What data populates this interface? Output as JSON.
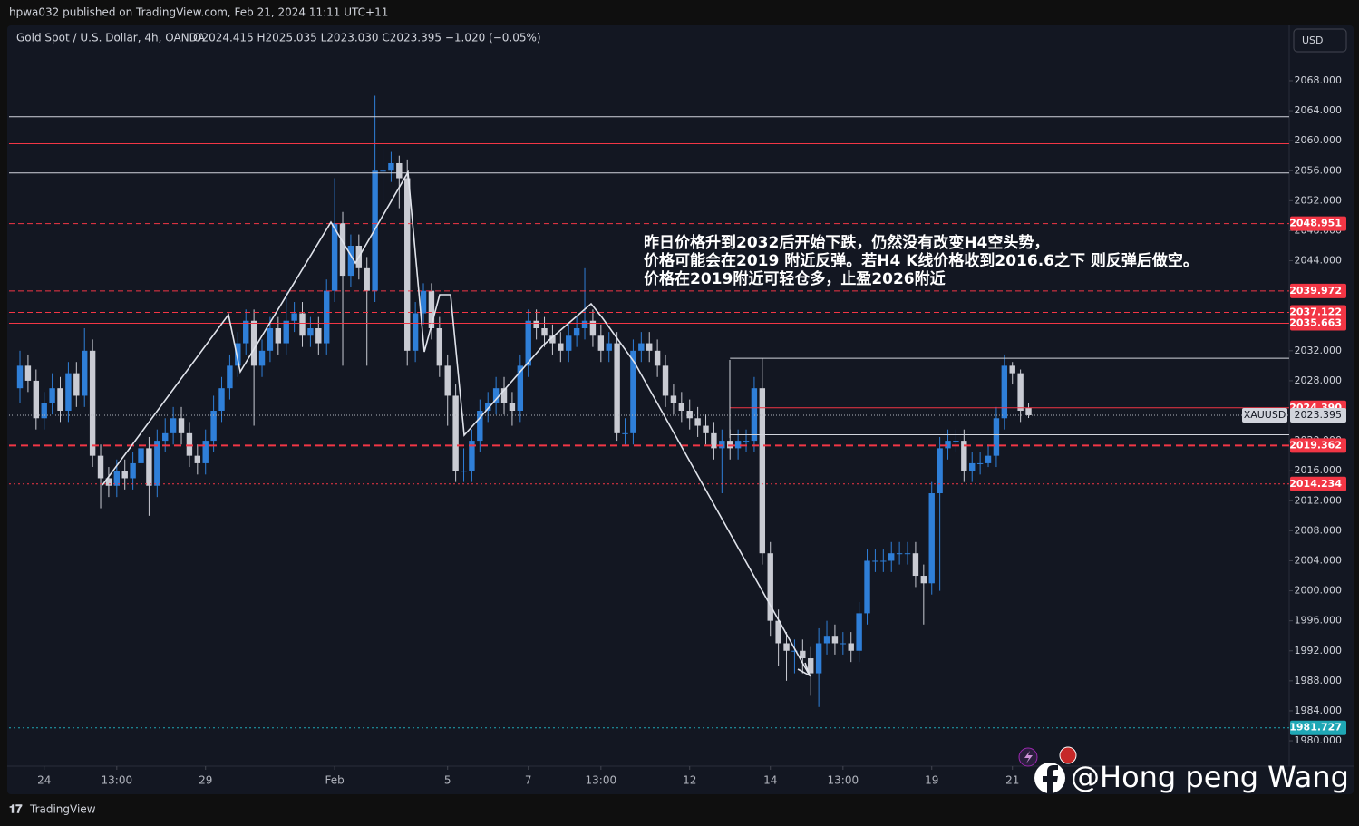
{
  "page": {
    "publisher": "hpwa032 published on TradingView.com, Feb 21, 2024 11:11 UTC+11",
    "currency_button": "USD",
    "watermark": "@Hong peng Wang",
    "footer": "TradingView"
  },
  "chart_data": {
    "type": "candlestick",
    "title": "Gold Spot / U.S. Dollar, 4h, OANDA",
    "ohlc_legend": "O2024.415  H2025.035  L2023.030  C2023.395  −1.020 (−0.05%)",
    "annotation": [
      "昨日价格升到2032后开始下跌，仍然没有改变H4空头势，",
      "价格可能会在2019 附近反弹。若H4 K线价格收到2016.6之下 则反弹后做空。",
      "价格在2019附近可轻仓多，止盈2026附近"
    ],
    "symbol": "XAUUSD",
    "last_price": 2023.395,
    "up_color": "#2f7fd8",
    "down_color": "#c9cbd3",
    "grid": false,
    "xlim": [
      -1.35,
      157.3
    ],
    "ylim": [
      1976.62,
      2075.37
    ],
    "xticks": [
      {
        "value": 3,
        "label": "24"
      },
      {
        "value": 12,
        "label": "13:00"
      },
      {
        "value": 23,
        "label": "29"
      },
      {
        "value": 39,
        "label": "Feb"
      },
      {
        "value": 53,
        "label": "5"
      },
      {
        "value": 63,
        "label": "7"
      },
      {
        "value": 72,
        "label": "13:00"
      },
      {
        "value": 83,
        "label": "12"
      },
      {
        "value": 93,
        "label": "14"
      },
      {
        "value": 102,
        "label": "13:00"
      },
      {
        "value": 113,
        "label": "19"
      },
      {
        "value": 123,
        "label": "21"
      }
    ],
    "yticks": [
      {
        "value": 2068,
        "label": "2068.000"
      },
      {
        "value": 2064,
        "label": "2064.000"
      },
      {
        "value": 2060,
        "label": "2060.000"
      },
      {
        "value": 2056,
        "label": "2056.000"
      },
      {
        "value": 2052,
        "label": "2052.000"
      },
      {
        "value": 2048,
        "label": "2048.000"
      },
      {
        "value": 2044,
        "label": "2044.000"
      },
      {
        "value": 2032,
        "label": "2032.000"
      },
      {
        "value": 2028,
        "label": "2028.000"
      },
      {
        "value": 2020,
        "label": "2020.000"
      },
      {
        "value": 2016,
        "label": "2016.000"
      },
      {
        "value": 2012,
        "label": "2012.000"
      },
      {
        "value": 2008,
        "label": "2008.000"
      },
      {
        "value": 2004,
        "label": "2004.000"
      },
      {
        "value": 2000,
        "label": "2000.000"
      },
      {
        "value": 1996,
        "label": "1996.000"
      },
      {
        "value": 1992,
        "label": "1992.000"
      },
      {
        "value": 1988,
        "label": "1988.000"
      },
      {
        "value": 1984,
        "label": "1984.000"
      },
      {
        "value": 1980,
        "label": "1980.000"
      }
    ],
    "levels": [
      {
        "value": 2063.2,
        "color": "#d1d4dc",
        "style": "solid"
      },
      {
        "value": 2059.6,
        "color": "#f23645",
        "style": "solid"
      },
      {
        "value": 2055.7,
        "color": "#d1d4dc",
        "style": "solid"
      },
      {
        "value": 2048.951,
        "label": "2048.951",
        "color": "#f23645",
        "style": "dashed"
      },
      {
        "value": 2039.972,
        "label": "2039.972",
        "color": "#f23645",
        "style": "dashed"
      },
      {
        "value": 2037.122,
        "label": "2037.122",
        "color": "#f23645",
        "style": "dashed"
      },
      {
        "value": 2035.663,
        "label": "2035.663",
        "color": "#f23645",
        "style": "solid"
      },
      {
        "value": 2031.0,
        "color": "#d1d4dc",
        "style": "solid",
        "start": 88
      },
      {
        "value": 2024.39,
        "label": "2024.390",
        "color": "#f23645",
        "style": "solid",
        "start": 88
      },
      {
        "value": 2020.8,
        "color": "#d1d4dc",
        "style": "solid",
        "start": 88
      },
      {
        "value": 2019.362,
        "label": "2019.362",
        "color": "#f23645",
        "style": "bold-dashed"
      },
      {
        "value": 2014.234,
        "label": "2014.234",
        "color": "#f23645",
        "style": "dotted"
      },
      {
        "value": 1981.727,
        "label": "1981.727",
        "color": "#1fa7b5",
        "style": "dotted"
      }
    ],
    "open": [
      2027,
      2030,
      2028,
      2023,
      2025,
      2027,
      2024,
      2029,
      2026,
      2032,
      2018,
      2015,
      2014,
      2016,
      2015,
      2017,
      2019,
      2014,
      2020,
      2021,
      2023,
      2021,
      2018,
      2017,
      2020,
      2024,
      2027,
      2030,
      2033,
      2036,
      2030,
      2032,
      2035,
      2033,
      2036,
      2037,
      2034,
      2035,
      2033,
      2040,
      2049,
      2042,
      2046,
      2043,
      2040,
      2056,
      2056,
      2057,
      2055,
      2032,
      2037,
      2040,
      2035,
      2030,
      2026,
      2016,
      2016,
      2020,
      2024,
      2025,
      2027,
      2025,
      2024,
      2030,
      2036,
      2035,
      2034,
      2033,
      2032,
      2034,
      2035,
      2036,
      2034,
      2032,
      2033,
      2021,
      2021,
      2032,
      2033,
      2032,
      2030,
      2026,
      2025,
      2024,
      2023,
      2022,
      2021,
      2019,
      2020,
      2019,
      2020,
      2020,
      2027,
      2005,
      1996,
      1993,
      1992,
      1992,
      1991,
      1989,
      1993,
      1994,
      1993,
      1993,
      1992,
      1997,
      2004,
      2004,
      2004,
      2005,
      2005,
      2005,
      2002,
      2001,
      2013,
      2019,
      2020,
      2020,
      2016,
      2017,
      2017,
      2018,
      2023,
      2030,
      2029,
      2024.415
    ],
    "high": [
      2032,
      2031.5,
      2029.5,
      2026.5,
      2029,
      2028.5,
      2030.5,
      2030.5,
      2035,
      2033.5,
      2019.5,
      2016.5,
      2017.5,
      2017.5,
      2018.5,
      2020.5,
      2020.5,
      2021.5,
      2023,
      2024.5,
      2024.5,
      2022.5,
      2019.5,
      2021.5,
      2026,
      2028.5,
      2031.5,
      2034.5,
      2037.5,
      2037.5,
      2033.5,
      2036.5,
      2036.5,
      2040,
      2038.5,
      2038.5,
      2036.5,
      2036.5,
      2041.5,
      2055,
      2050.5,
      2047.5,
      2047.5,
      2044.5,
      2066,
      2059,
      2058.5,
      2058,
      2057.5,
      2038.5,
      2041,
      2041,
      2036.5,
      2031.5,
      2027.5,
      2019,
      2021.5,
      2025.5,
      2026.5,
      2028.5,
      2028.5,
      2026.5,
      2031.5,
      2037.5,
      2037.5,
      2036.5,
      2035.5,
      2034.5,
      2035.5,
      2036.5,
      2043,
      2037.5,
      2035.5,
      2034.5,
      2034.5,
      2023,
      2033.5,
      2034.5,
      2034.5,
      2033.5,
      2031.5,
      2027.5,
      2026.5,
      2025.5,
      2024.5,
      2023.5,
      2022.5,
      2021.5,
      2021.5,
      2021.5,
      2021.5,
      2028.5,
      2031,
      2006.5,
      1997.5,
      1994.5,
      1993.5,
      1993.5,
      1992.5,
      1995,
      1996,
      1995.5,
      1994.5,
      1994.5,
      1998.5,
      2005.5,
      2005.5,
      2005.5,
      2006.5,
      2006.5,
      2006.5,
      2006.5,
      2003.5,
      2014.5,
      2020.5,
      2021.5,
      2021.5,
      2021.5,
      2018.5,
      2018.5,
      2019.5,
      2024.5,
      2031.5,
      2030.5,
      2029.5,
      2025.035
    ],
    "low": [
      2025,
      2026.5,
      2021.5,
      2021.5,
      2023.5,
      2022.5,
      2022.5,
      2024.5,
      2024.5,
      2016.5,
      2011,
      2012.5,
      2012.5,
      2013.5,
      2013.5,
      2015.5,
      2010,
      2012.5,
      2018.5,
      2019.5,
      2019.5,
      2016.5,
      2015.5,
      2015.5,
      2018.5,
      2022.5,
      2025.5,
      2028.5,
      2031.5,
      2022,
      2028.5,
      2030.5,
      2031.5,
      2031.5,
      2034.5,
      2032.5,
      2032.5,
      2031.5,
      2031.5,
      2038.5,
      2030,
      2040.5,
      2041.5,
      2030,
      2038.5,
      2052,
      2054.5,
      2051,
      2030,
      2030.5,
      2035.5,
      2033.5,
      2028.5,
      2022,
      2014.5,
      2014.5,
      2014.5,
      2018.5,
      2022.5,
      2023.5,
      2023.5,
      2022,
      2022.5,
      2028.5,
      2033.5,
      2032.5,
      2031.5,
      2030.5,
      2030.5,
      2032.5,
      2033.5,
      2032.5,
      2030.5,
      2030.5,
      2020,
      2019.5,
      2019.5,
      2030.5,
      2030.5,
      2028.5,
      2024.5,
      2023.5,
      2022.5,
      2021.5,
      2020.5,
      2019.5,
      2017.5,
      2013,
      2017.5,
      2017.5,
      2018.5,
      2018.5,
      2003.5,
      1994,
      1990,
      1988,
      1989,
      1989,
      1986,
      1984.5,
      1991.5,
      1991.5,
      1991.5,
      1990.5,
      1990.5,
      1995.5,
      2002.5,
      2002.5,
      2002.5,
      2003.5,
      2003.5,
      2000.5,
      1995.5,
      1999.5,
      2000,
      2017.5,
      2018.5,
      2014.5,
      2014.5,
      2015.5,
      2016.5,
      2016.5,
      2021.5,
      2027.5,
      2022.5,
      2023.03
    ],
    "close": [
      2030,
      2028,
      2023,
      2025,
      2027,
      2024,
      2029,
      2026,
      2032,
      2018,
      2015,
      2014,
      2016,
      2015,
      2017,
      2019,
      2014,
      2020,
      2021,
      2023,
      2021,
      2018,
      2017,
      2020,
      2024,
      2027,
      2030,
      2033,
      2036,
      2030,
      2032,
      2035,
      2033,
      2036,
      2037,
      2034,
      2035,
      2033,
      2040,
      2049,
      2042,
      2046,
      2043,
      2040,
      2056,
      2056,
      2057,
      2055,
      2032,
      2037,
      2040,
      2035,
      2030,
      2026,
      2016,
      2016,
      2020,
      2024,
      2025,
      2027,
      2025,
      2024,
      2030,
      2036,
      2035,
      2034,
      2033,
      2032,
      2034,
      2035,
      2036,
      2034,
      2032,
      2033,
      2021,
      2021,
      2032,
      2033,
      2032,
      2030,
      2026,
      2025,
      2024,
      2023,
      2022,
      2021,
      2019,
      2020,
      2019,
      2020,
      2020,
      2027,
      2005,
      1996,
      1993,
      1992,
      1992,
      1991,
      1989,
      1993,
      1994,
      1993,
      1993,
      1992,
      1997,
      2004,
      2004,
      2004,
      2005,
      2005,
      2005,
      2002,
      2001,
      2013,
      2019,
      2020,
      2020,
      2016,
      2017,
      2017,
      2018,
      2023,
      2030,
      2029,
      2024,
      2023.395
    ]
  }
}
